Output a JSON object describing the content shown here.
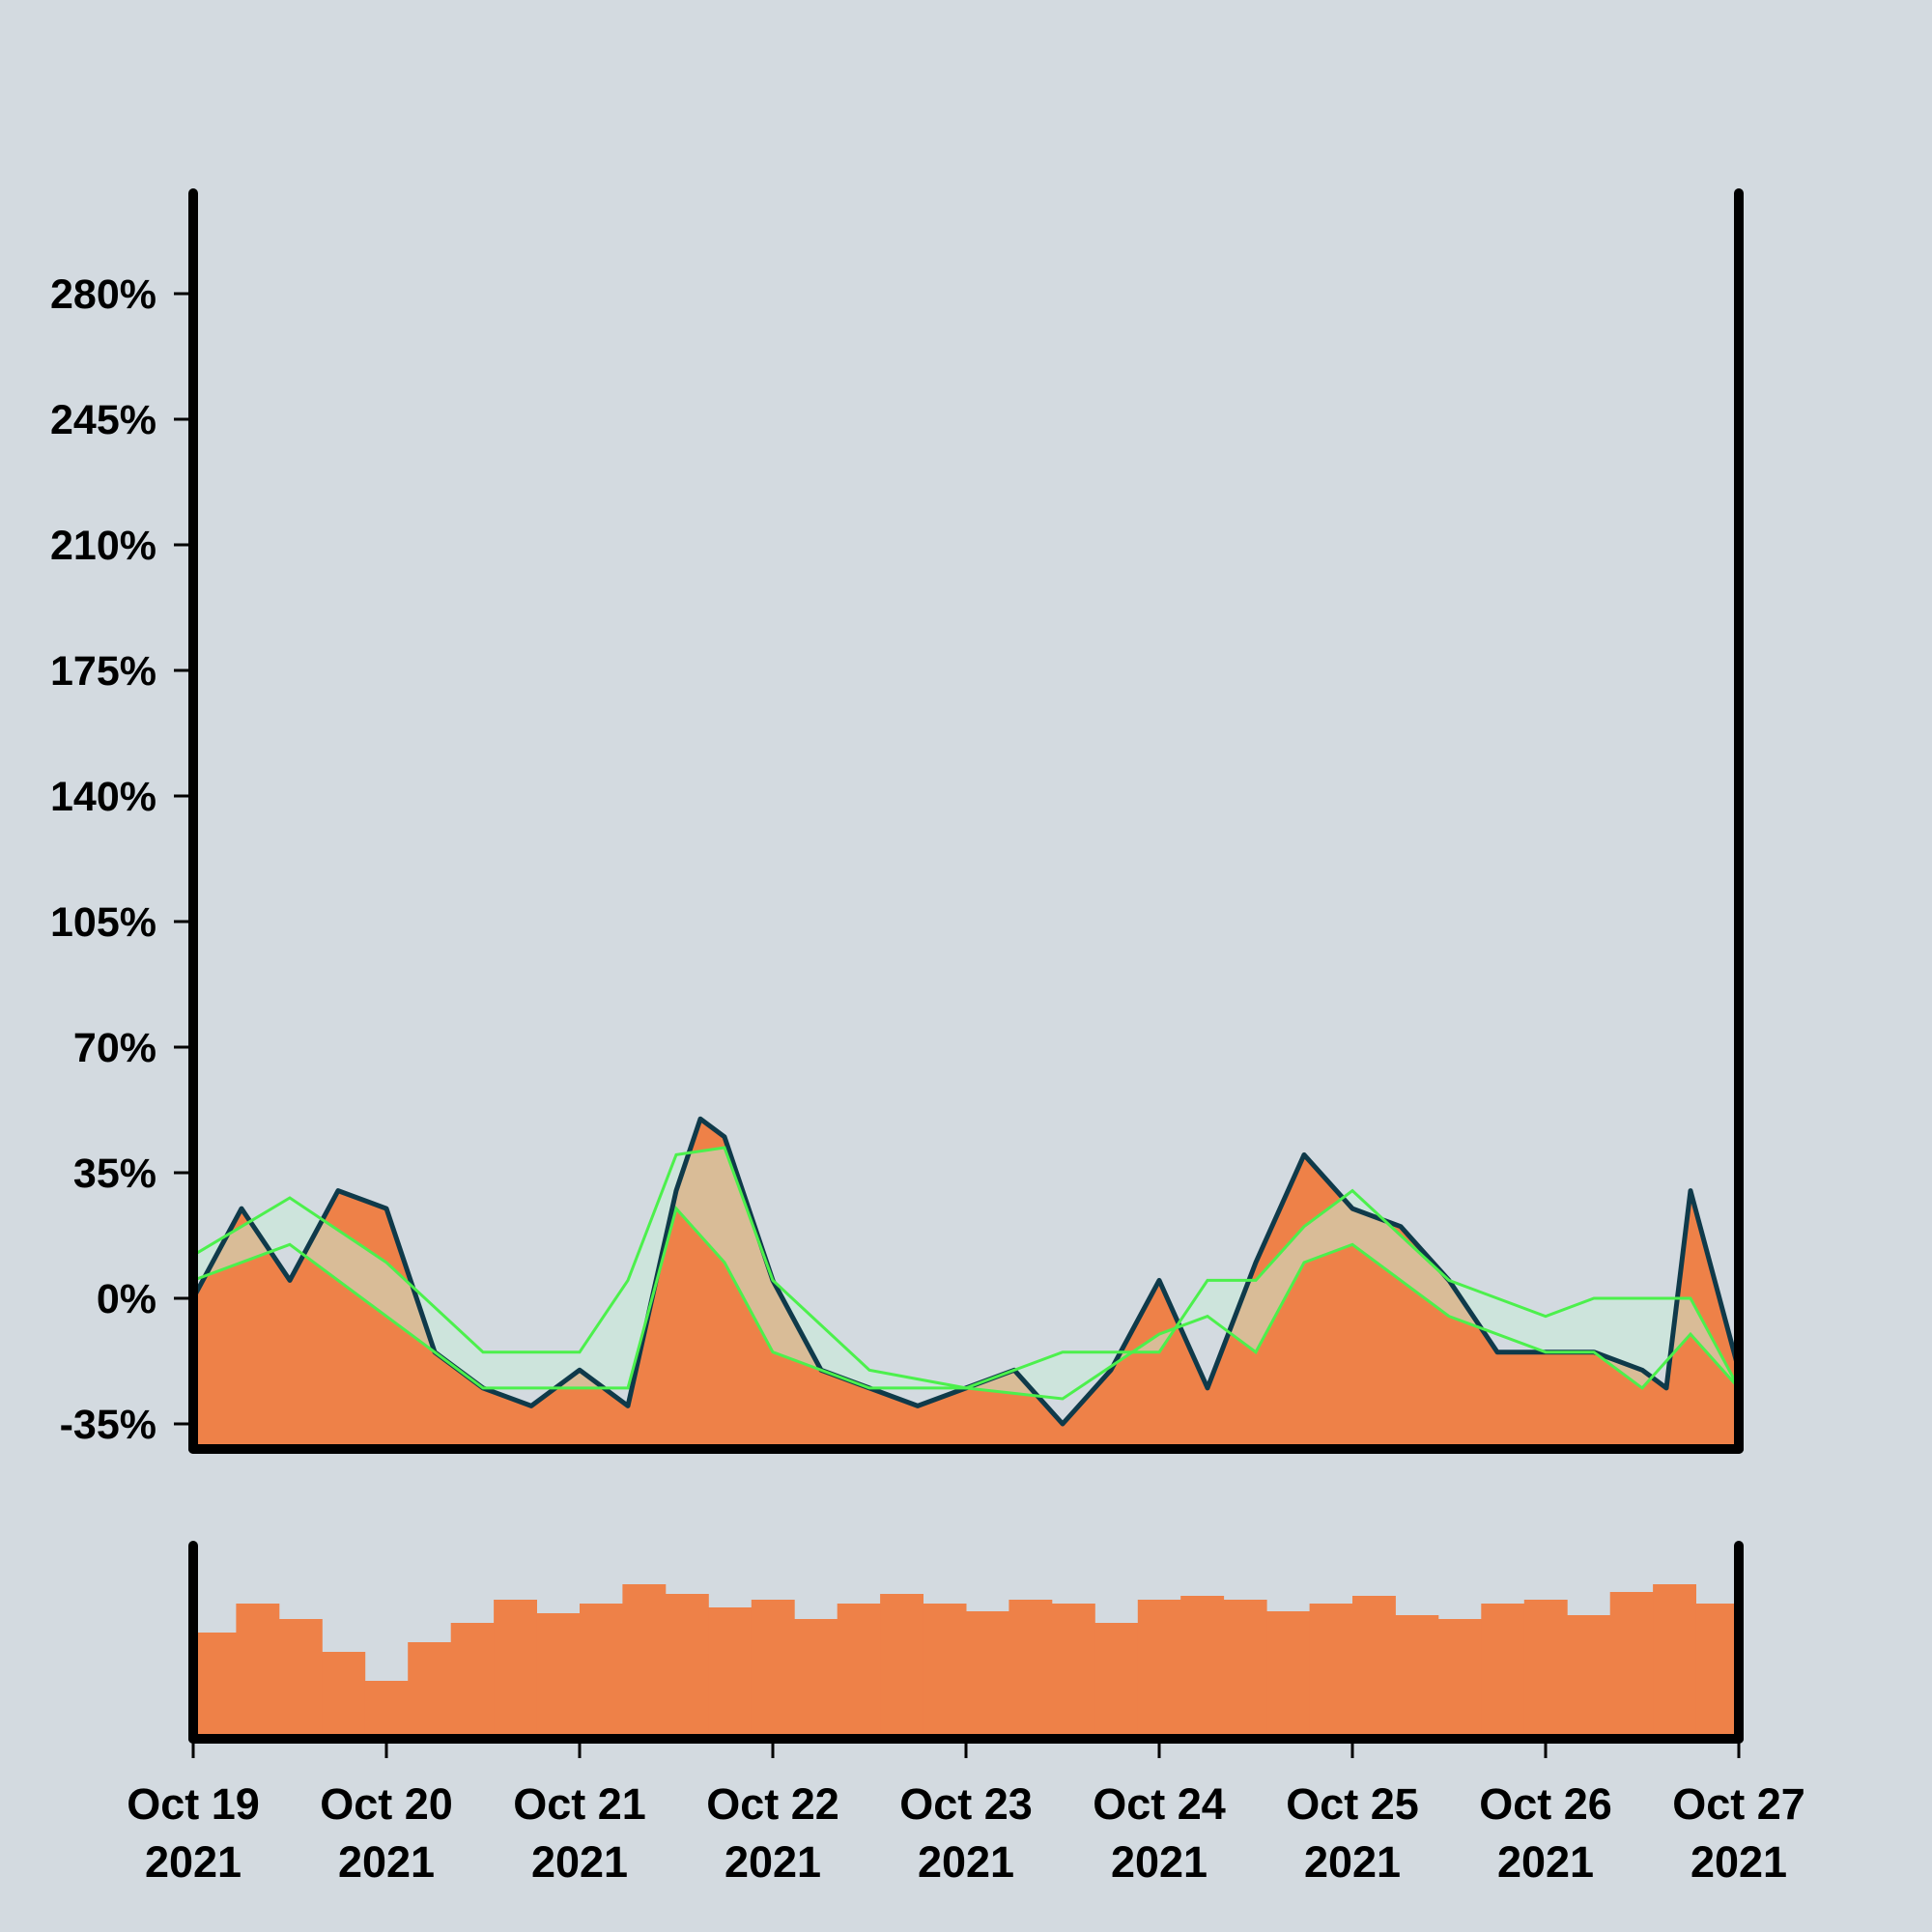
{
  "chart_data": {
    "type": "area",
    "panels": [
      "main",
      "volume"
    ],
    "x_unit": "day",
    "x_start": "2021-10-19",
    "x_end": "2021-10-27",
    "x_ticks": [
      {
        "x": "2021-10-19",
        "label1": "Oct 19",
        "label2": "2021"
      },
      {
        "x": "2021-10-20",
        "label1": "Oct 20",
        "label2": "2021"
      },
      {
        "x": "2021-10-21",
        "label1": "Oct 21",
        "label2": "2021"
      },
      {
        "x": "2021-10-22",
        "label1": "Oct 22",
        "label2": "2021"
      },
      {
        "x": "2021-10-23",
        "label1": "Oct 23",
        "label2": "2021"
      },
      {
        "x": "2021-10-24",
        "label1": "Oct 24",
        "label2": "2021"
      },
      {
        "x": "2021-10-25",
        "label1": "Oct 25",
        "label2": "2021"
      },
      {
        "x": "2021-10-26",
        "label1": "Oct 26",
        "label2": "2021"
      },
      {
        "x": "2021-10-27",
        "label1": "Oct 27",
        "label2": "2021"
      }
    ],
    "y_ticks": [
      {
        "value": -35,
        "label": "-35%"
      },
      {
        "value": 0,
        "label": "0%"
      },
      {
        "value": 35,
        "label": "35%"
      },
      {
        "value": 70,
        "label": "70%"
      },
      {
        "value": 105,
        "label": "105%"
      },
      {
        "value": 140,
        "label": "140%"
      },
      {
        "value": 175,
        "label": "175%"
      },
      {
        "value": 210,
        "label": "210%"
      },
      {
        "value": 245,
        "label": "245%"
      },
      {
        "value": 280,
        "label": "280%"
      }
    ],
    "ylim": [
      -42,
      308
    ],
    "grid": false,
    "legend": "none",
    "colors": {
      "background": "#d3dae0",
      "area_fill": "#ee8148",
      "line": "#0f3a4a",
      "envelope": "#4cf04c",
      "envelope_fill": "#c8ecd8",
      "volume": "#ee8148",
      "axes": "#000000"
    },
    "main_series": {
      "name": "",
      "x": [
        "2021-10-19 00:00",
        "2021-10-19 06:00",
        "2021-10-19 12:00",
        "2021-10-19 18:00",
        "2021-10-20 00:00",
        "2021-10-20 06:00",
        "2021-10-20 12:00",
        "2021-10-20 18:00",
        "2021-10-21 00:00",
        "2021-10-21 06:00",
        "2021-10-21 12:00",
        "2021-10-21 15:00",
        "2021-10-21 18:00",
        "2021-10-22 00:00",
        "2021-10-22 06:00",
        "2021-10-22 12:00",
        "2021-10-22 18:00",
        "2021-10-23 00:00",
        "2021-10-23 06:00",
        "2021-10-23 12:00",
        "2021-10-23 18:00",
        "2021-10-24 00:00",
        "2021-10-24 06:00",
        "2021-10-24 12:00",
        "2021-10-24 18:00",
        "2021-10-25 00:00",
        "2021-10-25 06:00",
        "2021-10-25 12:00",
        "2021-10-25 18:00",
        "2021-10-26 00:00",
        "2021-10-26 06:00",
        "2021-10-26 12:00",
        "2021-10-26 15:00",
        "2021-10-26 18:00",
        "2021-10-27 00:00"
      ],
      "y": [
        0,
        25,
        5,
        30,
        25,
        -15,
        -25,
        -30,
        -20,
        -30,
        30,
        50,
        45,
        5,
        -20,
        -25,
        -30,
        -25,
        -20,
        -35,
        -20,
        5,
        -25,
        10,
        40,
        25,
        20,
        5,
        -15,
        -15,
        -15,
        -20,
        -25,
        30,
        -20
      ]
    },
    "envelope_upper": {
      "x": [
        "2021-10-19 00:00",
        "2021-10-19 12:00",
        "2021-10-20 00:00",
        "2021-10-20 12:00",
        "2021-10-21 00:00",
        "2021-10-21 06:00",
        "2021-10-21 12:00",
        "2021-10-21 18:00",
        "2021-10-22 00:00",
        "2021-10-22 12:00",
        "2021-10-23 00:00",
        "2021-10-23 12:00",
        "2021-10-24 00:00",
        "2021-10-24 06:00",
        "2021-10-24 12:00",
        "2021-10-24 18:00",
        "2021-10-25 00:00",
        "2021-10-25 12:00",
        "2021-10-26 00:00",
        "2021-10-26 06:00",
        "2021-10-26 12:00",
        "2021-10-26 18:00",
        "2021-10-27 00:00"
      ],
      "y": [
        12,
        28,
        10,
        -15,
        -15,
        5,
        40,
        42,
        5,
        -20,
        -25,
        -15,
        -15,
        5,
        5,
        20,
        30,
        5,
        -5,
        0,
        0,
        0,
        -25
      ]
    },
    "envelope_lower": {
      "x": [
        "2021-10-19 00:00",
        "2021-10-19 12:00",
        "2021-10-20 00:00",
        "2021-10-20 12:00",
        "2021-10-21 00:00",
        "2021-10-21 06:00",
        "2021-10-21 12:00",
        "2021-10-21 18:00",
        "2021-10-22 00:00",
        "2021-10-22 12:00",
        "2021-10-23 00:00",
        "2021-10-23 12:00",
        "2021-10-24 00:00",
        "2021-10-24 06:00",
        "2021-10-24 12:00",
        "2021-10-24 18:00",
        "2021-10-25 00:00",
        "2021-10-25 12:00",
        "2021-10-26 00:00",
        "2021-10-26 06:00",
        "2021-10-26 12:00",
        "2021-10-26 18:00",
        "2021-10-27 00:00"
      ],
      "y": [
        5,
        15,
        -5,
        -25,
        -25,
        -25,
        25,
        10,
        -15,
        -25,
        -25,
        -28,
        -10,
        -5,
        -15,
        10,
        15,
        -5,
        -15,
        -15,
        -25,
        -10,
        -25
      ]
    },
    "volume": {
      "note_scale": "relative, no axis labels",
      "values": [
        0.55,
        0.7,
        0.62,
        0.45,
        0.3,
        0.5,
        0.6,
        0.72,
        0.65,
        0.7,
        0.8,
        0.75,
        0.68,
        0.72,
        0.62,
        0.7,
        0.75,
        0.7,
        0.66,
        0.72,
        0.7,
        0.6,
        0.72,
        0.74,
        0.72,
        0.66,
        0.7,
        0.74,
        0.64,
        0.62,
        0.7,
        0.72,
        0.64,
        0.76,
        0.8,
        0.7
      ]
    }
  }
}
